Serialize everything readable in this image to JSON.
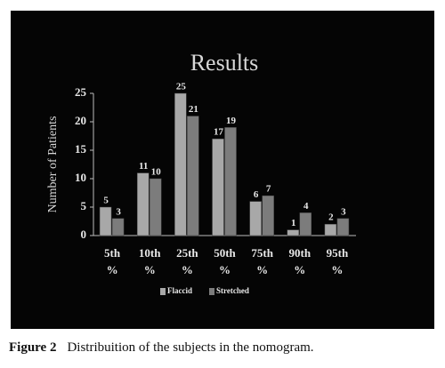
{
  "chart_data": {
    "type": "bar",
    "title": "Results",
    "y_label": "Number of Patients",
    "categories": [
      "5th %",
      "10th %",
      "25th %",
      "50th %",
      "75th %",
      "90th %",
      "95th %"
    ],
    "series": [
      {
        "name": "Flaccid",
        "color": "#a8a8a8",
        "values": [
          5,
          11,
          25,
          17,
          6,
          1,
          2
        ]
      },
      {
        "name": "Stretched",
        "color": "#7c7c7c",
        "values": [
          3,
          10,
          21,
          19,
          7,
          4,
          3
        ]
      }
    ],
    "ylim": [
      0,
      25
    ],
    "yticks": [
      0,
      5,
      10,
      15,
      20,
      25
    ],
    "legend": "bottom",
    "figure_label": "Figure 2",
    "caption": "Distribuition of the subjects in the nomogram."
  }
}
